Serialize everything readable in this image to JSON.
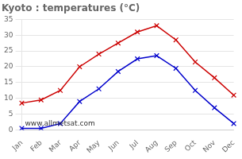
{
  "chart_data": {
    "type": "line",
    "title": "Kyoto : temperatures (°C)",
    "categories": [
      "Jan",
      "Feb",
      "Mar",
      "Apr",
      "May",
      "Jun",
      "Jul",
      "Aug",
      "Sep",
      "Oct",
      "Nov",
      "Dec"
    ],
    "series": [
      {
        "color": "#cc0000",
        "marker": "x",
        "values": [
          8.5,
          9.5,
          12.5,
          20.0,
          24.0,
          27.5,
          31.0,
          33.0,
          28.5,
          21.5,
          16.5,
          11.0
        ]
      },
      {
        "color": "#0000cc",
        "marker": "x",
        "values": [
          0.5,
          0.5,
          2.0,
          9.0,
          13.0,
          18.5,
          22.5,
          23.5,
          19.5,
          12.5,
          7.0,
          2.0
        ]
      }
    ],
    "ylim": [
      0,
      35
    ],
    "yticks": [
      0,
      5,
      10,
      15,
      20,
      25,
      30,
      35
    ],
    "grid": "y",
    "annotations": [
      {
        "text": "www.allmetsat.com"
      }
    ]
  }
}
